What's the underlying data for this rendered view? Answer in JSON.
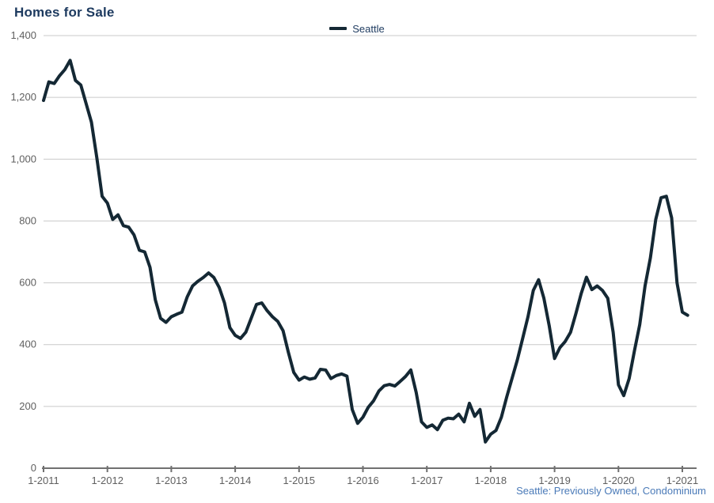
{
  "page": {
    "title": "Homes for Sale",
    "footer": "Seattle: Previously Owned, Condominium"
  },
  "legend": {
    "label": "Seattle"
  },
  "colors": {
    "series_line": "#142834",
    "title_text": "#1d3a5f",
    "axis_text": "#5f5f5f",
    "gridline": "#c9c9c9",
    "axis_line": "#707070",
    "footer_text": "#4a7ab8"
  },
  "chart_data": {
    "type": "line",
    "title": "Homes for Sale",
    "xlabel": "",
    "ylabel": "",
    "ylim": [
      0,
      1400
    ],
    "y_ticks": [
      0,
      200,
      400,
      600,
      800,
      1000,
      1200,
      1400
    ],
    "x_tick_labels": [
      "1-2011",
      "1-2012",
      "1-2013",
      "1-2014",
      "1-2015",
      "1-2016",
      "1-2017",
      "1-2018",
      "1-2019",
      "1-2020",
      "1-2021"
    ],
    "grid": "horizontal",
    "legend_position": "top-center",
    "footnote": "Seattle: Previously Owned, Condominium",
    "series": [
      {
        "name": "Seattle",
        "start_month": "2011-01",
        "end_month": "2021-02",
        "frequency": "monthly",
        "values": [
          1190,
          1250,
          1245,
          1270,
          1290,
          1320,
          1255,
          1240,
          1180,
          1120,
          1005,
          880,
          858,
          805,
          820,
          785,
          780,
          755,
          705,
          700,
          650,
          545,
          485,
          472,
          490,
          498,
          505,
          555,
          590,
          605,
          617,
          632,
          617,
          585,
          535,
          455,
          430,
          420,
          440,
          485,
          530,
          535,
          510,
          490,
          475,
          445,
          375,
          310,
          285,
          295,
          288,
          292,
          320,
          318,
          290,
          300,
          305,
          298,
          190,
          145,
          165,
          197,
          218,
          250,
          267,
          271,
          266,
          281,
          297,
          318,
          245,
          150,
          132,
          140,
          125,
          155,
          162,
          160,
          175,
          150,
          210,
          168,
          190,
          85,
          110,
          122,
          165,
          230,
          290,
          350,
          420,
          490,
          575,
          610,
          550,
          460,
          355,
          390,
          410,
          440,
          500,
          565,
          618,
          578,
          590,
          575,
          550,
          440,
          270,
          235,
          290,
          380,
          465,
          590,
          680,
          805,
          875,
          880,
          810,
          600,
          505,
          495
        ]
      }
    ]
  }
}
